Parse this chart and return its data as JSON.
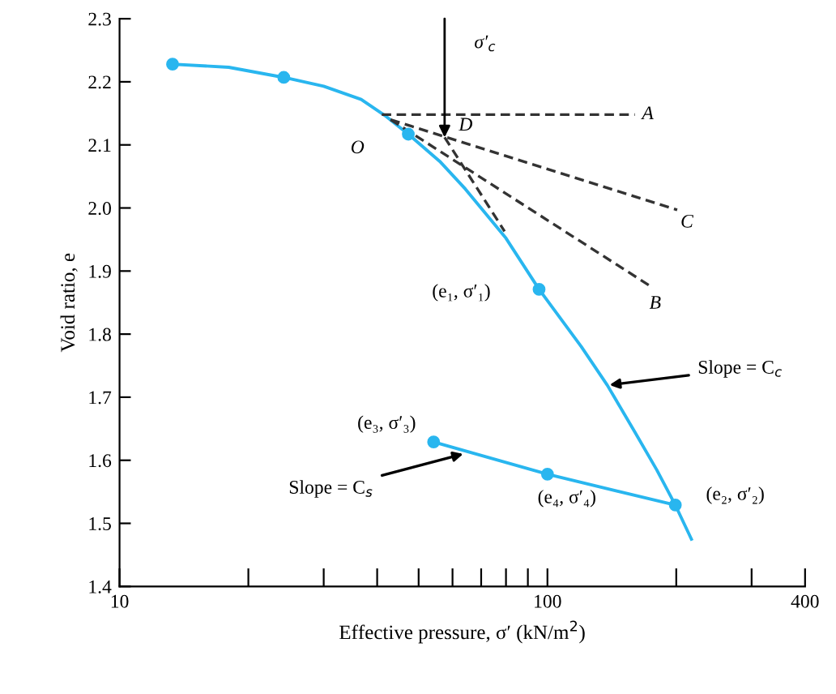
{
  "chart_data": {
    "type": "line",
    "xlabel": "Effective pressure, σ′ (kN/m$^{2}$)",
    "ylabel": "Void ratio, e",
    "log": "x",
    "xlim": [
      10,
      400
    ],
    "ylim": [
      1.4,
      2.3
    ],
    "xticks": [
      10,
      {
        "value": 20,
        "label": null
      },
      {
        "value": 30,
        "label": null
      },
      {
        "value": 40,
        "label": null
      },
      {
        "value": 50,
        "label": null
      },
      {
        "value": 60,
        "label": null
      },
      {
        "value": 70,
        "label": null
      },
      {
        "value": 80,
        "label": null
      },
      {
        "value": 90,
        "label": null
      },
      100,
      {
        "value": 200,
        "label": null
      },
      {
        "value": 300,
        "label": null
      },
      400
    ],
    "yticks": [
      1.4,
      1.5,
      1.6,
      1.7,
      1.8,
      1.9,
      {
        "value": 2,
        "label": "2.0"
      },
      2.1,
      2.2,
      2.3
    ],
    "grid": false,
    "legend": false,
    "series": [
      {
        "color": "#29b6ef",
        "marker": "none",
        "line_style": "solid",
        "x": [
          13.3,
          18,
          24.2,
          30,
          36.7,
          42,
          47.3,
          56,
          64.3,
          80,
          95.6,
          120,
          138,
          160,
          180,
          199,
          217
        ],
        "values": [
          2.228,
          2.223,
          2.207,
          2.193,
          2.172,
          2.145,
          2.117,
          2.074,
          2.03,
          1.952,
          1.871,
          1.78,
          1.719,
          1.645,
          1.585,
          1.529,
          1.475
        ]
      },
      {
        "color": "#29b6ef",
        "marker": "none",
        "line_style": "solid",
        "x": [
          54.2,
          100,
          199
        ],
        "values": [
          1.629,
          1.578,
          1.529
        ]
      },
      {
        "type": "scatter",
        "color": "#29b6ef",
        "marker": "circle",
        "x": [
          13.3,
          24.2,
          47.3,
          95.6,
          199,
          54.2,
          100
        ],
        "values": [
          2.228,
          2.207,
          2.117,
          1.871,
          1.529,
          1.629,
          1.578
        ]
      },
      {
        "color": "#333333",
        "marker": "none",
        "line_style": "dashed",
        "x": [
          41,
          160
        ],
        "values": [
          2.148,
          2.148
        ]
      },
      {
        "color": "#333333",
        "marker": "none",
        "line_style": "dashed",
        "x": [
          43,
          201
        ],
        "values": [
          2.14,
          1.997
        ]
      },
      {
        "color": "#333333",
        "marker": "none",
        "line_style": "dashed",
        "x": [
          43,
          174
        ],
        "values": [
          2.14,
          1.876
        ]
      },
      {
        "color": "#333333",
        "marker": "none",
        "line_style": "dashed",
        "x": [
          57.5,
          79.4
        ],
        "values": [
          2.112,
          1.963
        ]
      }
    ],
    "annotations": [
      "σ′$_{c}$",
      {
        "text": "O",
        "x": 41,
        "y": 2.148
      },
      {
        "text": "D",
        "x": 57.5,
        "y": 2.112
      },
      {
        "text": "A",
        "x": 160,
        "y": 2.148
      },
      {
        "text": "C",
        "x": 201,
        "y": 1.997
      },
      {
        "text": "B",
        "x": 174,
        "y": 1.876
      },
      {
        "text": "(e₁, σ′₁)",
        "x": 95.6,
        "y": 1.871
      },
      {
        "text": "Slope = C$_{c}$",
        "x": 138,
        "y": 1.719
      },
      {
        "text": "(e₃, σ′₃)",
        "x": 54.2,
        "y": 1.629
      },
      {
        "text": "Slope = C$_{s}$",
        "x": 64.3,
        "y": 1.611
      },
      {
        "text": "(e₄, σ′₄)",
        "x": 100,
        "y": 1.578
      },
      {
        "text": "(e₂, σ′₂)",
        "x": 199,
        "y": 1.529
      }
    ]
  }
}
